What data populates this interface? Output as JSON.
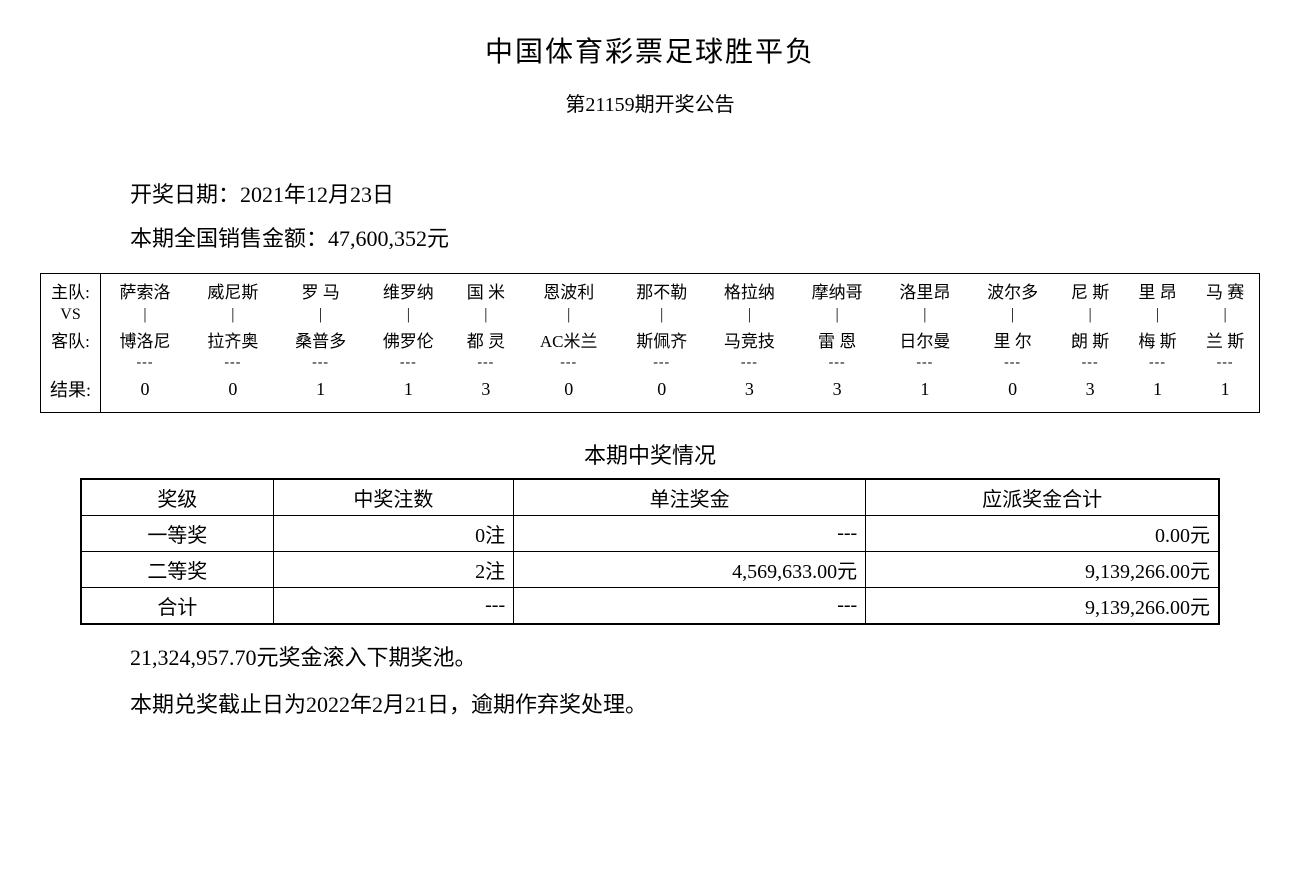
{
  "title": "中国体育彩票足球胜平负",
  "subtitle": "第21159期开奖公告",
  "draw_date_label": "开奖日期：",
  "draw_date": "2021年12月23日",
  "sales_label": "本期全国销售金额：",
  "sales_amount": "47,600,352元",
  "match": {
    "home_label": "主队:",
    "vs_label": "VS",
    "away_label": "客队:",
    "result_label": "结果:",
    "home": [
      "萨索洛",
      "威尼斯",
      "罗 马",
      "维罗纳",
      "国 米",
      "恩波利",
      "那不勒",
      "格拉纳",
      "摩纳哥",
      "洛里昂",
      "波尔多",
      "尼 斯",
      "里 昂",
      "马 赛"
    ],
    "away": [
      "博洛尼",
      "拉齐奥",
      "桑普多",
      "佛罗伦",
      "都 灵",
      "AC米兰",
      "斯佩齐",
      "马竞技",
      "雷 恩",
      "日尔曼",
      "里 尔",
      "朗 斯",
      "梅 斯",
      "兰 斯"
    ],
    "results": [
      "0",
      "0",
      "1",
      "1",
      "3",
      "0",
      "0",
      "3",
      "3",
      "1",
      "0",
      "3",
      "1",
      "1"
    ],
    "vline": "|",
    "dash": "---"
  },
  "prize_section_title": "本期中奖情况",
  "prize_table": {
    "headers": [
      "奖级",
      "中奖注数",
      "单注奖金",
      "应派奖金合计"
    ],
    "rows": [
      {
        "level": "一等奖",
        "count": "0注",
        "per": "---",
        "total": "0.00元"
      },
      {
        "level": "二等奖",
        "count": "2注",
        "per": "4,569,633.00元",
        "total": "9,139,266.00元"
      },
      {
        "level": "合计",
        "count": "---",
        "per": "---",
        "total": "9,139,266.00元"
      }
    ]
  },
  "rollover_note": "21,324,957.70元奖金滚入下期奖池。",
  "deadline_note": "本期兑奖截止日为2022年2月21日，逾期作弃奖处理。",
  "colors": {
    "text": "#000000",
    "bg": "#ffffff",
    "border": "#000000"
  }
}
